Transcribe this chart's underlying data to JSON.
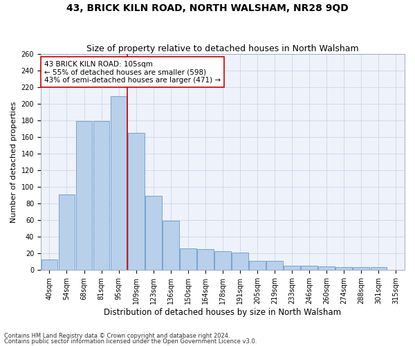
{
  "title1": "43, BRICK KILN ROAD, NORTH WALSHAM, NR28 9QD",
  "title2": "Size of property relative to detached houses in North Walsham",
  "xlabel": "Distribution of detached houses by size in North Walsham",
  "ylabel": "Number of detached properties",
  "categories": [
    "40sqm",
    "54sqm",
    "68sqm",
    "81sqm",
    "95sqm",
    "109sqm",
    "123sqm",
    "136sqm",
    "150sqm",
    "164sqm",
    "178sqm",
    "191sqm",
    "205sqm",
    "219sqm",
    "233sqm",
    "246sqm",
    "260sqm",
    "274sqm",
    "288sqm",
    "301sqm",
    "315sqm"
  ],
  "values": [
    12,
    91,
    179,
    179,
    209,
    165,
    89,
    59,
    26,
    25,
    22,
    21,
    11,
    11,
    5,
    5,
    4,
    3,
    3,
    3,
    0
  ],
  "bar_color": "#b8d0ea",
  "bar_edge_color": "#6699cc",
  "vline_color": "#cc0000",
  "annotation_text": "43 BRICK KILN ROAD: 105sqm\n← 55% of detached houses are smaller (598)\n43% of semi-detached houses are larger (471) →",
  "annotation_box_color": "#ffffff",
  "annotation_box_edge": "#cc0000",
  "ylim": [
    0,
    260
  ],
  "yticks": [
    0,
    20,
    40,
    60,
    80,
    100,
    120,
    140,
    160,
    180,
    200,
    220,
    240,
    260
  ],
  "footer1": "Contains HM Land Registry data © Crown copyright and database right 2024.",
  "footer2": "Contains public sector information licensed under the Open Government Licence v3.0.",
  "bg_color": "#ffffff",
  "plot_bg_color": "#eef2fb",
  "title1_fontsize": 10,
  "title2_fontsize": 9,
  "xlabel_fontsize": 8.5,
  "ylabel_fontsize": 8,
  "tick_fontsize": 7,
  "annotation_fontsize": 7.5,
  "vline_bar_index": 5
}
